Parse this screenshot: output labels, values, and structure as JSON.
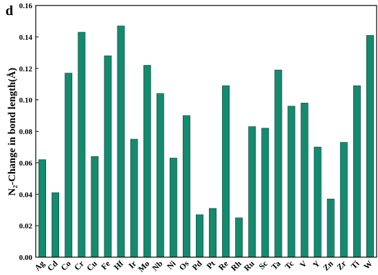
{
  "chart_data": {
    "type": "bar",
    "panel_label": "d",
    "y_label": "N₂-Change in bond length(Å)",
    "categories": [
      "Ag",
      "Cd",
      "Co",
      "Cr",
      "Cu",
      "Fe",
      "Hf",
      "Ir",
      "Mo",
      "Nb",
      "Ni",
      "Os",
      "Pd",
      "Pt",
      "Re",
      "Rh",
      "Ru",
      "Sc",
      "Ta",
      "Tc",
      "V",
      "Y",
      "Zn",
      "Zr",
      "Ti",
      "W"
    ],
    "values": [
      0.062,
      0.041,
      0.117,
      0.143,
      0.064,
      0.128,
      0.147,
      0.075,
      0.122,
      0.104,
      0.063,
      0.09,
      0.027,
      0.031,
      0.109,
      0.025,
      0.083,
      0.082,
      0.119,
      0.096,
      0.098,
      0.07,
      0.037,
      0.073,
      0.109,
      0.141
    ],
    "color": "#148a6e",
    "ylim": [
      0,
      0.16
    ],
    "yticks": [
      {
        "value": 0,
        "label": "0.00"
      },
      0.02,
      0.04,
      0.06,
      0.08,
      {
        "value": 0.1,
        "label": "0.10"
      },
      0.12,
      0.14,
      0.16
    ],
    "grid": false
  }
}
